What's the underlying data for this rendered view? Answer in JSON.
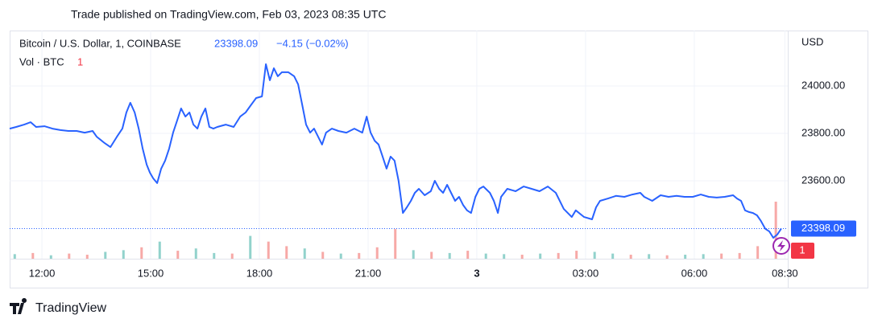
{
  "header": "Trade published on TradingView.com, Feb 03, 2023 08:35 UTC",
  "footer": "TradingView",
  "chart_data": {
    "type": "line",
    "symbol": "Bitcoin / U.S. Dollar, 1, COINBASE",
    "change": "−4.15 (−0.02%)",
    "volume_label": "Vol · BTC",
    "volume_last": 1,
    "y_unit": "USD",
    "grid": true,
    "xlim": [
      11.11,
      32.58
    ],
    "xticks": [
      {
        "value": 12,
        "label": "12:00"
      },
      {
        "value": 15,
        "label": "15:00"
      },
      {
        "value": 18,
        "label": "18:00"
      },
      {
        "value": 21,
        "label": "21:00"
      },
      {
        "value": 24,
        "label": "3"
      },
      {
        "value": 27,
        "label": "03:00"
      },
      {
        "value": 30,
        "label": "06:00"
      },
      {
        "value": 32.5,
        "label": "08:30"
      }
    ],
    "ylim": [
      23271,
      24234
    ],
    "yticks": [
      {
        "value": 23600,
        "label": "23600.00"
      },
      {
        "value": 23800,
        "label": "23800.00"
      },
      {
        "value": 24000,
        "label": "24000.00"
      }
    ],
    "series": [
      {
        "name": "BTCUSD",
        "color": "#2962ff",
        "x": [
          11.11,
          11.29,
          11.51,
          11.69,
          11.84,
          12.07,
          12.29,
          12.51,
          12.73,
          12.96,
          13.18,
          13.4,
          13.51,
          13.73,
          13.89,
          14.07,
          14.22,
          14.33,
          14.44,
          14.56,
          14.67,
          14.78,
          14.89,
          14.98,
          15.07,
          15.18,
          15.29,
          15.4,
          15.51,
          15.62,
          15.73,
          15.84,
          15.96,
          16.07,
          16.18,
          16.29,
          16.4,
          16.51,
          16.62,
          16.73,
          16.84,
          17.07,
          17.29,
          17.47,
          17.62,
          17.78,
          17.91,
          18.07,
          18.18,
          18.29,
          18.4,
          18.51,
          18.62,
          18.8,
          18.96,
          19.07,
          19.18,
          19.29,
          19.4,
          19.51,
          19.62,
          19.73,
          19.84,
          20.0,
          20.18,
          20.4,
          20.62,
          20.84,
          20.96,
          21.07,
          21.18,
          21.29,
          21.4,
          21.51,
          21.62,
          21.73,
          21.84,
          21.96,
          22.07,
          22.18,
          22.29,
          22.4,
          22.56,
          22.73,
          22.84,
          22.96,
          23.07,
          23.18,
          23.29,
          23.4,
          23.51,
          23.62,
          23.73,
          23.84,
          23.96,
          24.07,
          24.18,
          24.36,
          24.47,
          24.58,
          24.67,
          24.84,
          25.07,
          25.29,
          25.51,
          25.73,
          25.96,
          26.18,
          26.4,
          26.62,
          26.73,
          26.96,
          27.18,
          27.29,
          27.4,
          27.62,
          27.84,
          28.07,
          28.29,
          28.51,
          28.62,
          28.84,
          29.07,
          29.29,
          29.51,
          29.73,
          29.96,
          30.18,
          30.4,
          30.62,
          30.84,
          31.07,
          31.18,
          31.29,
          31.4,
          31.51,
          31.62,
          31.73,
          31.84,
          31.96,
          32.07,
          32.18,
          32.29,
          32.4
        ],
        "values": [
          23820,
          23827,
          23837,
          23847,
          23827,
          23830,
          23820,
          23814,
          23810,
          23810,
          23803,
          23810,
          23786,
          23759,
          23742,
          23786,
          23820,
          23888,
          23929,
          23888,
          23820,
          23736,
          23668,
          23634,
          23610,
          23590,
          23651,
          23685,
          23736,
          23803,
          23854,
          23905,
          23871,
          23888,
          23837,
          23820,
          23871,
          23905,
          23827,
          23820,
          23827,
          23837,
          23827,
          23871,
          23888,
          23922,
          23949,
          23956,
          24092,
          24024,
          24075,
          24041,
          24058,
          24058,
          24041,
          24007,
          23922,
          23837,
          23803,
          23820,
          23786,
          23753,
          23803,
          23820,
          23810,
          23803,
          23820,
          23803,
          23871,
          23803,
          23769,
          23753,
          23702,
          23651,
          23702,
          23685,
          23600,
          23464,
          23488,
          23515,
          23549,
          23566,
          23539,
          23556,
          23600,
          23566,
          23549,
          23583,
          23549,
          23515,
          23532,
          23498,
          23475,
          23464,
          23532,
          23566,
          23576,
          23549,
          23515,
          23464,
          23532,
          23566,
          23556,
          23576,
          23566,
          23556,
          23576,
          23549,
          23481,
          23447,
          23475,
          23447,
          23437,
          23488,
          23515,
          23525,
          23536,
          23532,
          23542,
          23549,
          23532,
          23515,
          23539,
          23532,
          23536,
          23532,
          23532,
          23542,
          23532,
          23529,
          23532,
          23539,
          23525,
          23515,
          23475,
          23468,
          23464,
          23454,
          23430,
          23397,
          23386,
          23359,
          23373,
          23398.09
        ]
      }
    ],
    "volume": {
      "up_color": "rgba(38,166,154,0.5)",
      "down_color": "rgba(239,83,80,0.5)",
      "y2lim": [
        0,
        400
      ],
      "x": [
        11.25,
        11.75,
        12.25,
        12.75,
        13.25,
        13.75,
        14.25,
        14.75,
        15.25,
        15.75,
        16.25,
        16.75,
        17.25,
        17.75,
        18.25,
        18.75,
        19.25,
        19.75,
        20.25,
        20.75,
        21.25,
        21.75,
        22.25,
        22.75,
        23.25,
        23.75,
        24.25,
        24.75,
        25.25,
        25.75,
        26.25,
        26.75,
        27.25,
        27.75,
        28.25,
        28.75,
        29.25,
        29.75,
        30.25,
        30.75,
        31.25,
        31.75,
        32.25
      ],
      "values": [
        8,
        10,
        6,
        9,
        7,
        12,
        15,
        20,
        30,
        14,
        18,
        10,
        9,
        40,
        30,
        22,
        18,
        12,
        9,
        10,
        20,
        52,
        15,
        12,
        10,
        14,
        9,
        8,
        7,
        9,
        10,
        14,
        12,
        9,
        7,
        8,
        6,
        7,
        8,
        9,
        10,
        22,
        100
      ],
      "up": [
        true,
        false,
        true,
        false,
        false,
        true,
        true,
        false,
        true,
        false,
        true,
        true,
        false,
        true,
        false,
        false,
        true,
        false,
        true,
        false,
        false,
        false,
        true,
        false,
        true,
        false,
        true,
        true,
        false,
        true,
        false,
        false,
        true,
        true,
        false,
        true,
        false,
        true,
        true,
        false,
        false,
        false,
        false
      ]
    }
  }
}
